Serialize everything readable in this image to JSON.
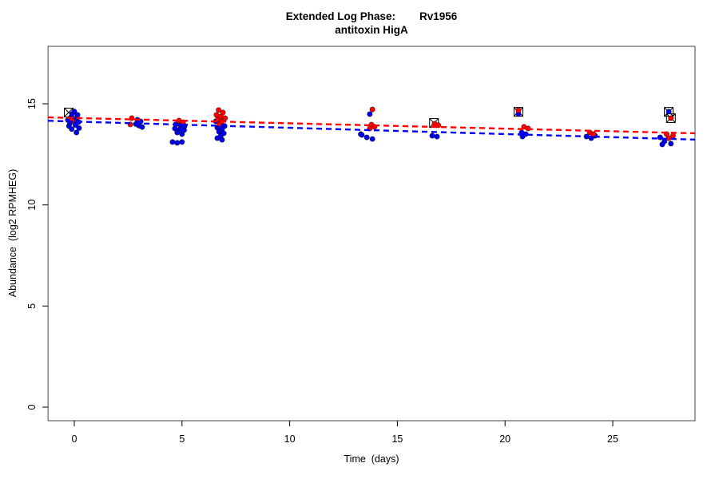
{
  "chart_data": {
    "type": "scatter",
    "title_line1": "Extended Log Phase:        Rv1956",
    "title_line2": "antitoxin HigA",
    "xlabel": "Time  (days)",
    "ylabel": "Abundance  (log2 RPMHEG)",
    "x_ticks": [
      0,
      5,
      10,
      15,
      20,
      25
    ],
    "y_ticks": [
      0,
      5,
      10,
      15
    ],
    "xlim": [
      -1.22,
      28.82
    ],
    "ylim": [
      -0.67,
      17.84
    ],
    "grid": false,
    "legend": "none",
    "colors": {
      "series_red": "#FF0000",
      "series_blue": "#0000EE",
      "outlier": "#000000",
      "axis": "#000000",
      "box": "#444444"
    },
    "series": [
      {
        "name": "red-condition",
        "marker": "filled-circle",
        "color_key": "series_red",
        "points": [
          [
            -0.11,
            14.17
          ],
          [
            2.6,
            13.98
          ],
          [
            2.67,
            14.29
          ],
          [
            4.86,
            14.17
          ],
          [
            5.05,
            14.09
          ],
          [
            6.6,
            14.45
          ],
          [
            6.65,
            14.21
          ],
          [
            6.7,
            14.69
          ],
          [
            6.75,
            14.0
          ],
          [
            6.8,
            14.37
          ],
          [
            6.85,
            14.13
          ],
          [
            6.9,
            14.57
          ],
          [
            7.0,
            14.29
          ],
          [
            13.72,
            13.78
          ],
          [
            13.8,
            13.97
          ],
          [
            13.84,
            14.72
          ],
          [
            13.94,
            13.86
          ],
          [
            16.73,
            14.01
          ],
          [
            16.9,
            13.94
          ],
          [
            20.62,
            14.68
          ],
          [
            20.88,
            13.86
          ],
          [
            21.07,
            13.78
          ],
          [
            23.93,
            13.58
          ],
          [
            24.11,
            13.5
          ],
          [
            27.5,
            13.5
          ],
          [
            27.6,
            13.3
          ],
          [
            27.7,
            14.29
          ],
          [
            27.8,
            13.42
          ]
        ]
      },
      {
        "name": "blue-condition",
        "marker": "filled-circle",
        "color_key": "series_blue",
        "points": [
          [
            -0.3,
            14.2
          ],
          [
            -0.25,
            13.9
          ],
          [
            -0.2,
            14.05
          ],
          [
            -0.15,
            14.35
          ],
          [
            -0.12,
            13.75
          ],
          [
            -0.1,
            14.5
          ],
          [
            0.0,
            14.62
          ],
          [
            0.0,
            14.15
          ],
          [
            0.05,
            13.95
          ],
          [
            0.1,
            14.3
          ],
          [
            0.1,
            13.58
          ],
          [
            0.15,
            14.45
          ],
          [
            0.2,
            14.1
          ],
          [
            0.22,
            13.8
          ],
          [
            2.86,
            14.0
          ],
          [
            2.93,
            14.21
          ],
          [
            3.0,
            13.92
          ],
          [
            3.08,
            14.13
          ],
          [
            3.15,
            13.85
          ],
          [
            4.56,
            13.11
          ],
          [
            4.67,
            13.78
          ],
          [
            4.71,
            13.98
          ],
          [
            4.78,
            13.58
          ],
          [
            4.78,
            13.07
          ],
          [
            4.9,
            13.74
          ],
          [
            4.93,
            13.94
          ],
          [
            5.0,
            13.5
          ],
          [
            5.0,
            13.11
          ],
          [
            5.1,
            13.7
          ],
          [
            5.12,
            13.9
          ],
          [
            6.57,
            14.13
          ],
          [
            6.64,
            13.82
          ],
          [
            6.64,
            13.3
          ],
          [
            6.72,
            13.62
          ],
          [
            6.8,
            13.98
          ],
          [
            6.8,
            13.42
          ],
          [
            6.86,
            13.74
          ],
          [
            6.86,
            13.22
          ],
          [
            6.94,
            13.54
          ],
          [
            6.98,
            13.9
          ],
          [
            13.3,
            13.5
          ],
          [
            13.35,
            13.46
          ],
          [
            13.58,
            13.34
          ],
          [
            13.72,
            14.49
          ],
          [
            13.84,
            13.26
          ],
          [
            16.62,
            13.42
          ],
          [
            16.84,
            13.38
          ],
          [
            20.62,
            14.5
          ],
          [
            20.77,
            13.58
          ],
          [
            20.81,
            13.38
          ],
          [
            20.96,
            13.5
          ],
          [
            23.78,
            13.38
          ],
          [
            24.0,
            13.3
          ],
          [
            24.18,
            13.42
          ],
          [
            27.2,
            13.34
          ],
          [
            27.3,
            12.99
          ],
          [
            27.4,
            13.14
          ],
          [
            27.6,
            14.61
          ],
          [
            27.7,
            13.03
          ]
        ]
      }
    ],
    "outlier_markers": {
      "symbol": "square-x",
      "color_key": "outlier",
      "points": [
        [
          -0.26,
          14.57
        ],
        [
          16.7,
          14.05
        ],
        [
          20.62,
          14.6
        ],
        [
          27.6,
          14.6
        ],
        [
          27.7,
          14.29
        ]
      ]
    },
    "trend_lines": [
      {
        "name": "red-fit",
        "style": "dashed",
        "color_key": "series_red",
        "x": [
          -1.22,
          28.82
        ],
        "y": [
          14.33,
          13.54
        ]
      },
      {
        "name": "blue-fit",
        "style": "dashed",
        "color_key": "series_blue",
        "x": [
          -1.22,
          28.82
        ],
        "y": [
          14.16,
          13.23
        ]
      }
    ]
  }
}
